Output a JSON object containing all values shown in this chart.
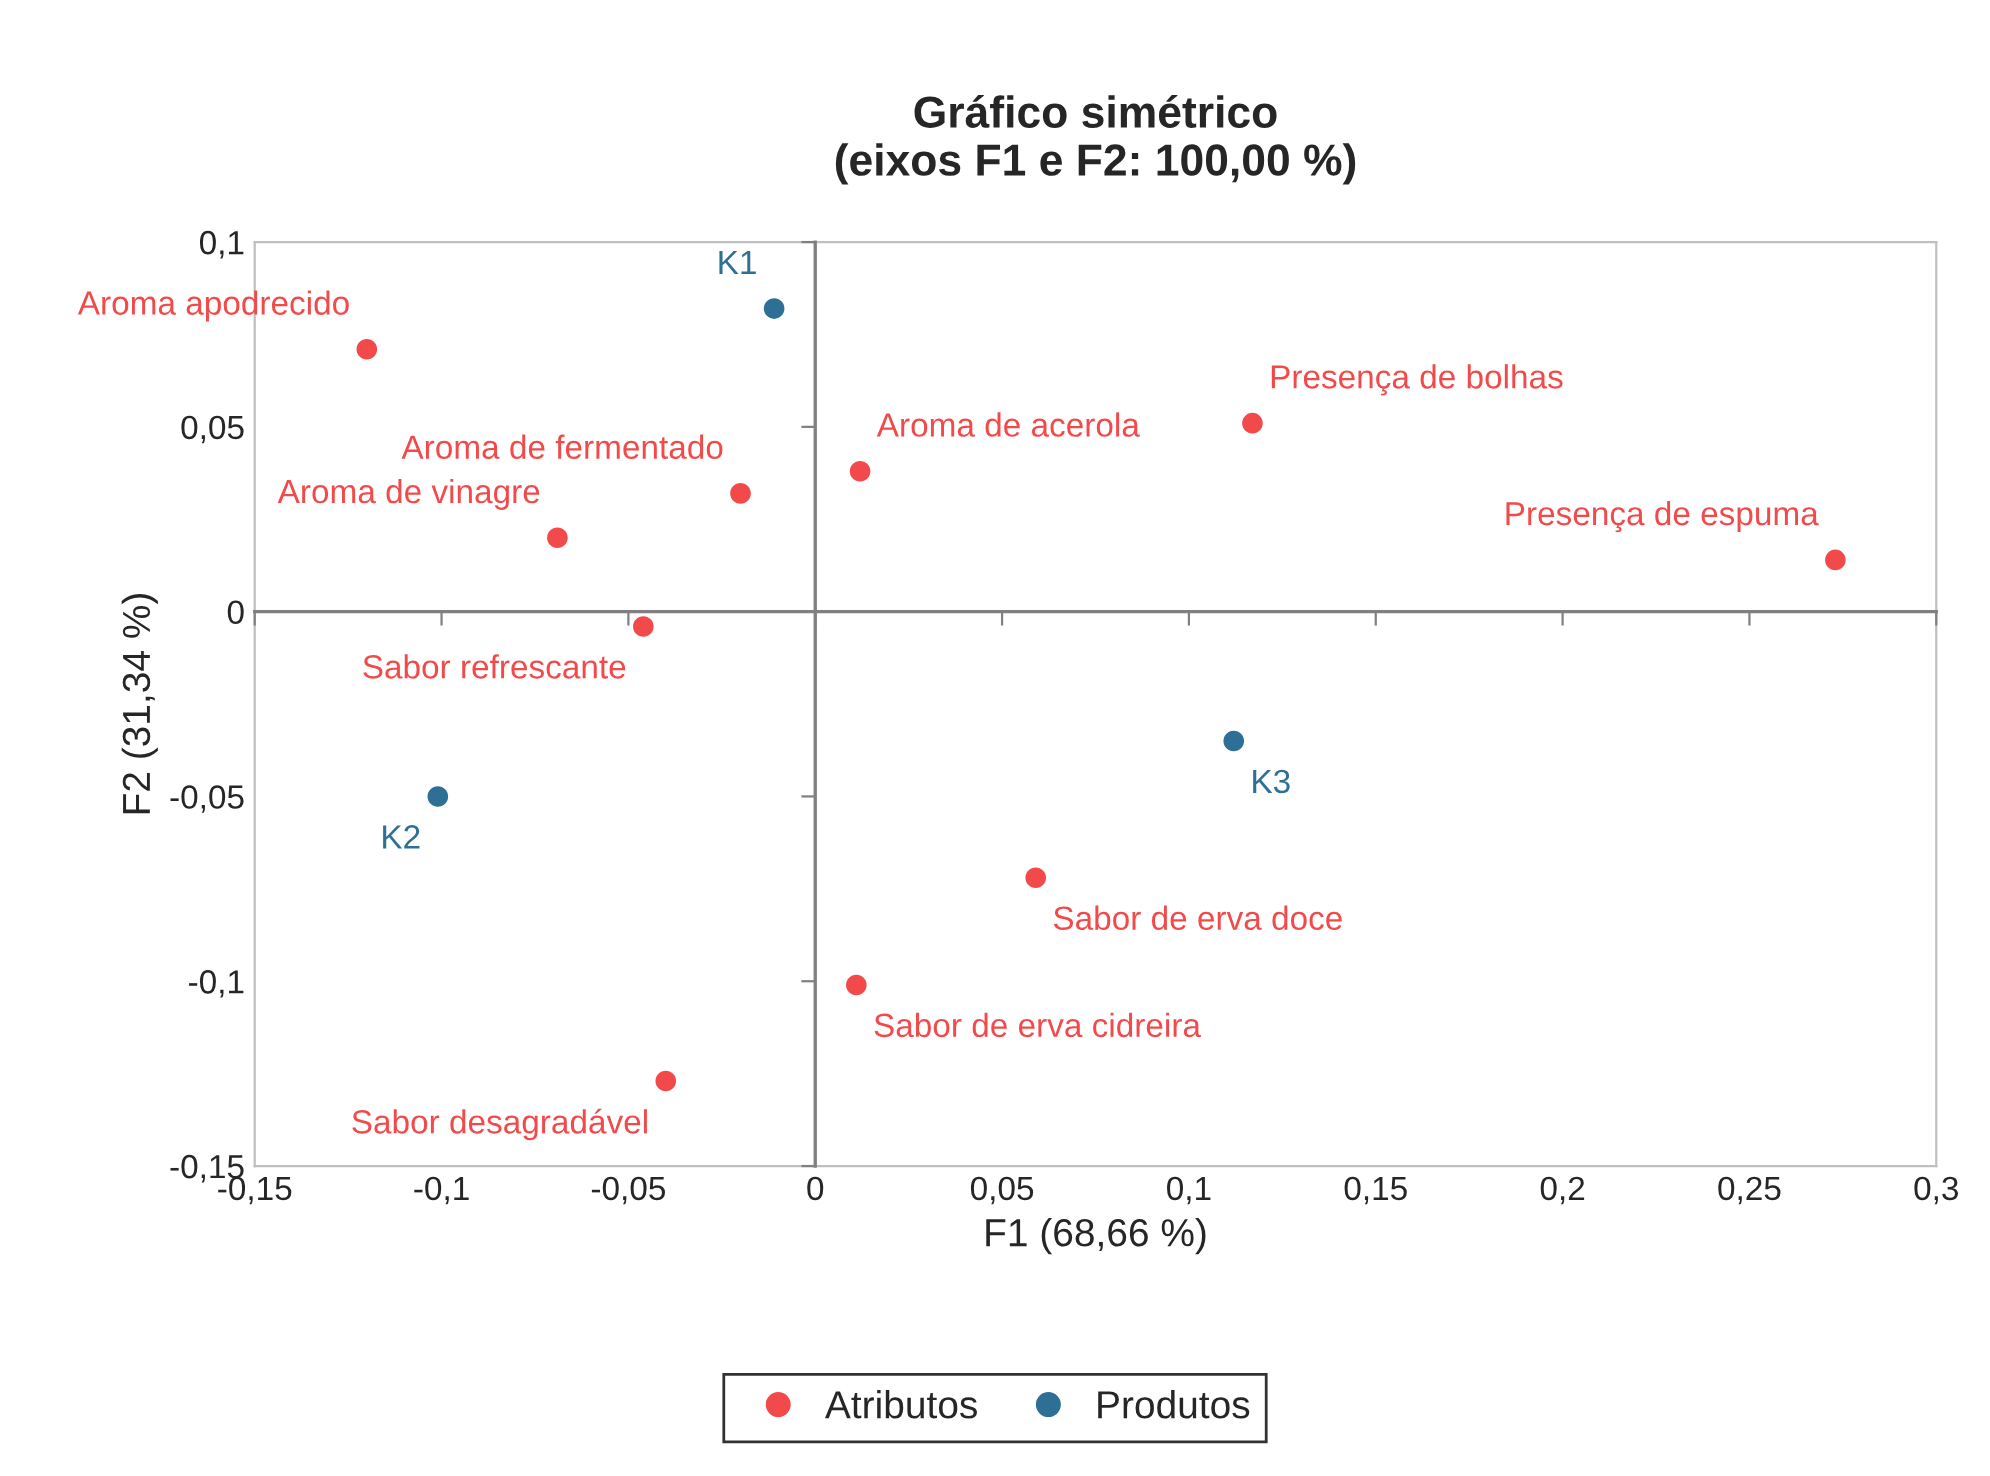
{
  "chart_data": {
    "type": "scatter",
    "title": "Gráfico simétrico\n(eixos F1 e F2: 100,00 %)",
    "xlabel": "F1 (68,66 %)",
    "ylabel": "F2 (31,34 %)",
    "series": [
      {
        "name": "Atributos",
        "color": "#f24a4a",
        "x": [
          -0.12,
          -0.02,
          -0.069,
          0.012,
          0.117,
          0.273,
          -0.046,
          0.059,
          0.011,
          -0.04
        ],
        "values": [
          0.071,
          0.032,
          0.02,
          0.038,
          0.051,
          0.014,
          -0.004,
          -0.072,
          -0.101,
          -0.127
        ]
      },
      {
        "name": "Produtos",
        "color": "#2e6f96",
        "x": [
          -0.011,
          -0.101,
          0.112
        ],
        "values": [
          0.082,
          -0.05,
          -0.035
        ]
      }
    ],
    "annotations": [
      {
        "text": "Aroma apodrecido",
        "x": -0.12,
        "y": 0.071
      },
      {
        "text": "Aroma de fermentado",
        "x": -0.02,
        "y": 0.032
      },
      {
        "text": "Aroma de vinagre",
        "x": -0.069,
        "y": 0.02
      },
      {
        "text": "Aroma de acerola",
        "x": 0.012,
        "y": 0.038
      },
      {
        "text": "Presença de bolhas",
        "x": 0.117,
        "y": 0.051
      },
      {
        "text": "Presença de espuma",
        "x": 0.273,
        "y": 0.014
      },
      {
        "text": "Sabor refrescante",
        "x": -0.046,
        "y": -0.004
      },
      {
        "text": "Sabor de erva doce",
        "x": 0.059,
        "y": -0.072
      },
      {
        "text": "Sabor de erva cidreira",
        "x": 0.011,
        "y": -0.101
      },
      {
        "text": "Sabor desagradável",
        "x": -0.04,
        "y": -0.127
      },
      {
        "text": "K1",
        "x": -0.011,
        "y": 0.082
      },
      {
        "text": "K2",
        "x": -0.101,
        "y": -0.05
      },
      {
        "text": "K3",
        "x": 0.112,
        "y": -0.035
      }
    ],
    "xlim": [
      -0.15,
      0.3
    ],
    "xticks": [
      {
        "value": -0.15,
        "label": "-0,15"
      },
      {
        "value": -0.1,
        "label": "-0,1"
      },
      {
        "value": -0.05,
        "label": "-0,05"
      },
      {
        "value": 0,
        "label": "0"
      },
      {
        "value": 0.05,
        "label": "0,05"
      },
      {
        "value": 0.1,
        "label": "0,1"
      },
      {
        "value": 0.15,
        "label": "0,15"
      },
      {
        "value": 0.2,
        "label": "0,2"
      },
      {
        "value": 0.25,
        "label": "0,25"
      },
      {
        "value": 0.3,
        "label": "0,3"
      }
    ],
    "ylim": [
      -0.15,
      0.1
    ],
    "yticks": [
      {
        "value": -0.15,
        "label": "-0,15"
      },
      {
        "value": -0.1,
        "label": "-0,1"
      },
      {
        "value": -0.05,
        "label": "-0,05"
      },
      {
        "value": 0,
        "label": "0"
      },
      {
        "value": 0.05,
        "label": "0,05"
      },
      {
        "value": 0.1,
        "label": "0,1"
      }
    ],
    "legend": "bottom",
    "marker": "circle"
  }
}
